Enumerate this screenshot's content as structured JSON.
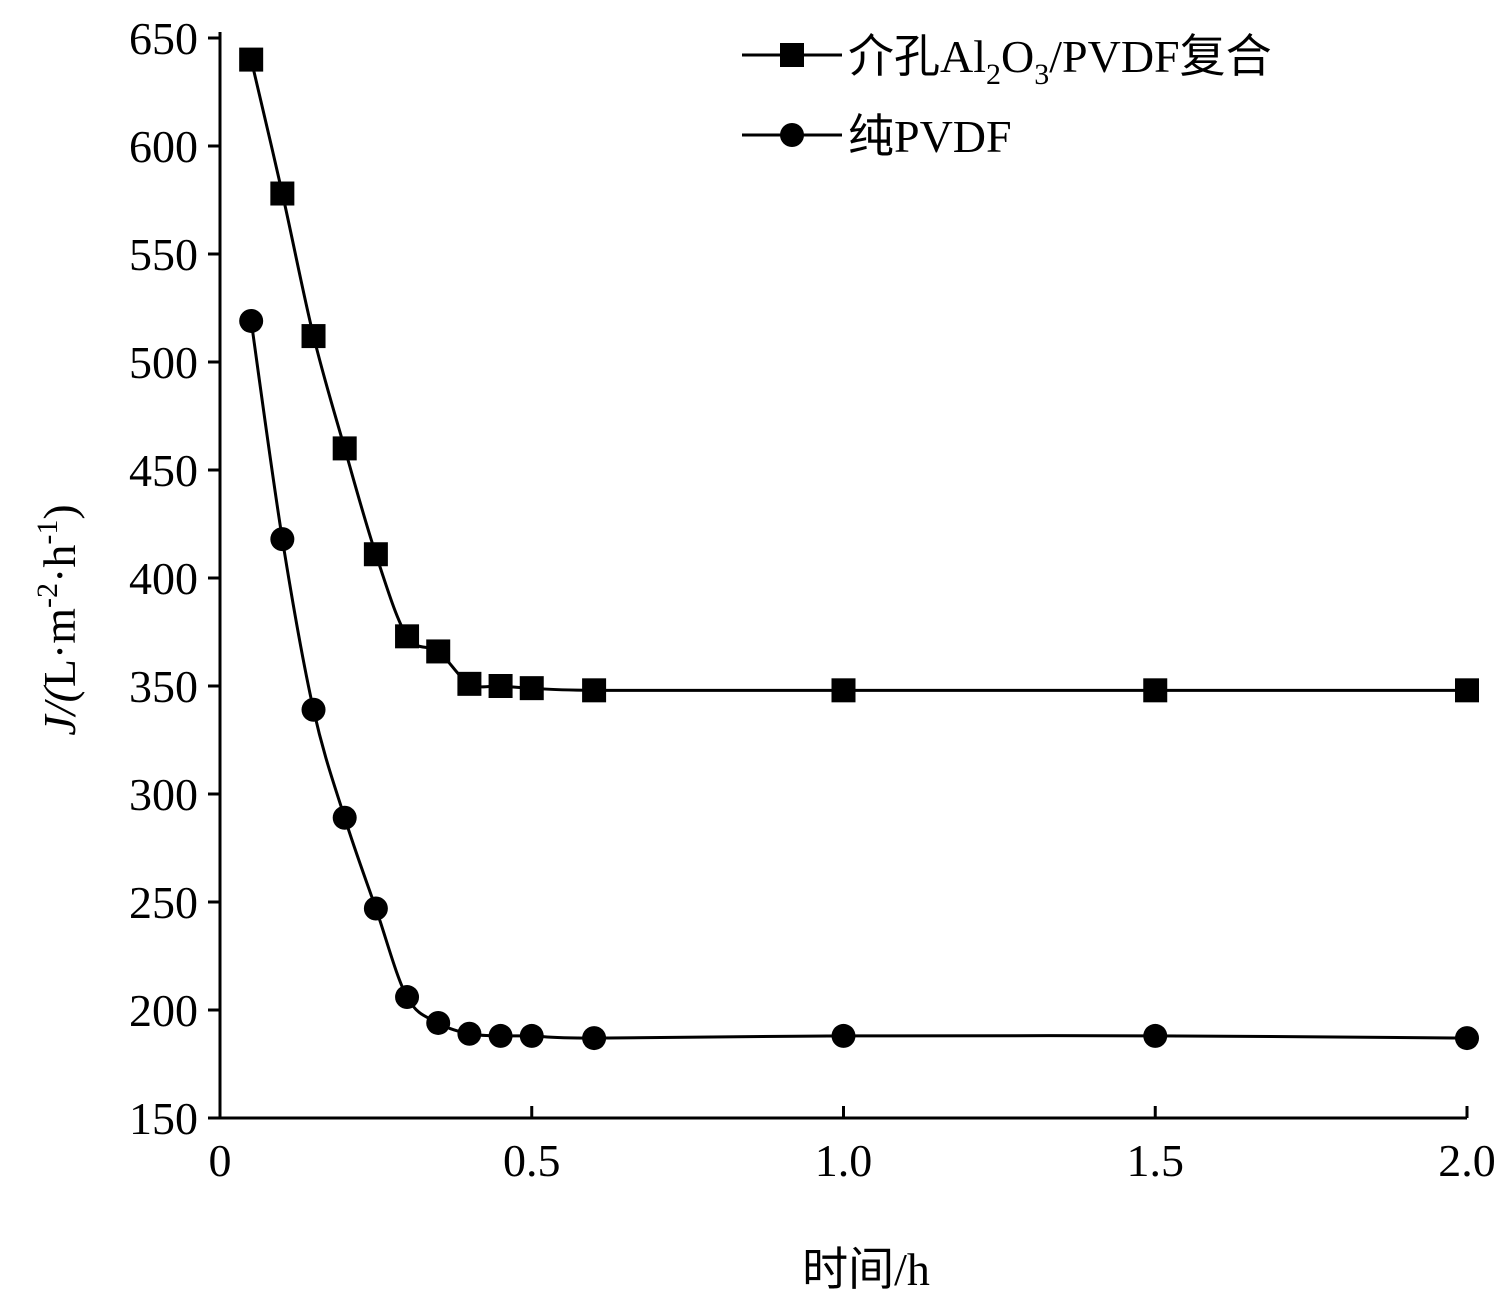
{
  "chart_data": {
    "type": "line",
    "title": "",
    "xlabel": "时间/h",
    "ylabel": {
      "main": "J/(L·m",
      "sup1": "-2",
      "mid": "·h",
      "sup2": "-1",
      "end": ")"
    },
    "xlim": [
      0,
      2.0
    ],
    "ylim": [
      150,
      650
    ],
    "xticks": [
      0,
      0.5,
      1.0,
      1.5,
      2.0
    ],
    "xtick_labels": [
      "0",
      "0.5",
      "1.0",
      "1.5",
      "2.0"
    ],
    "yticks": [
      150,
      200,
      250,
      300,
      350,
      400,
      450,
      500,
      550,
      600,
      650
    ],
    "ytick_labels": [
      "150",
      "200",
      "250",
      "300",
      "350",
      "400",
      "450",
      "500",
      "550",
      "600",
      "650"
    ],
    "grid": false,
    "legend_position": "top-right",
    "series": [
      {
        "name": "介孔Al2O3/PVDF复合",
        "legend": {
          "a": "介孔Al",
          "s1": "2",
          "b": "O",
          "s2": "3",
          "c": "/PVDF复合"
        },
        "marker": "square",
        "x": [
          0.05,
          0.1,
          0.15,
          0.2,
          0.25,
          0.3,
          0.35,
          0.4,
          0.45,
          0.5,
          0.6,
          1.0,
          1.5,
          2.0
        ],
        "y": [
          640,
          578,
          512,
          460,
          411,
          373,
          366,
          351,
          350,
          349,
          348,
          348,
          348,
          348
        ]
      },
      {
        "name": "纯PVDF",
        "legend": {
          "a": "纯PVDF"
        },
        "marker": "circle",
        "x": [
          0.05,
          0.1,
          0.15,
          0.2,
          0.25,
          0.3,
          0.35,
          0.4,
          0.45,
          0.5,
          0.6,
          1.0,
          1.5,
          2.0
        ],
        "y": [
          519,
          418,
          339,
          289,
          247,
          206,
          194,
          189,
          188,
          188,
          187,
          188,
          188,
          187
        ]
      }
    ],
    "colors": {
      "line": "#000000"
    }
  }
}
